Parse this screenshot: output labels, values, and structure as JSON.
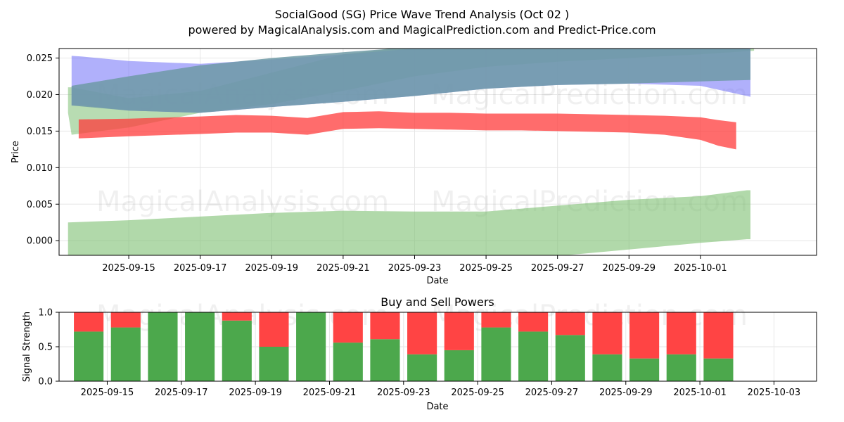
{
  "title_line1": "SocialGood (SG) Price Wave Trend Analysis (Oct 02 )",
  "title_line2": "powered by MagicalAnalysis.com and MagicalPrediction.com and Predict-Price.com",
  "watermarks": [
    "MagicalAnalysis.com",
    "MagicalPrediction.com"
  ],
  "colors": {
    "blue_band": "#6f6ff8",
    "green_band": "#7dbf72",
    "red_band": "#ff3b3b",
    "teal_overlap": "#6f9aa6",
    "buy": "#4ca84c",
    "sell": "#ff4444",
    "grid": "#e6e6e6"
  },
  "chart_data": [
    {
      "type": "area",
      "title": "",
      "xlabel": "Date",
      "ylabel": "Price",
      "xlim": [
        -1.95,
        19.25
      ],
      "ylim": [
        -0.002,
        0.0263
      ],
      "x_origin_date": "2025-09-15",
      "xticks": [
        {
          "x": 0,
          "label": "2025-09-15"
        },
        {
          "x": 2,
          "label": "2025-09-17"
        },
        {
          "x": 4,
          "label": "2025-09-19"
        },
        {
          "x": 6,
          "label": "2025-09-21"
        },
        {
          "x": 8,
          "label": "2025-09-23"
        },
        {
          "x": 10,
          "label": "2025-09-25"
        },
        {
          "x": 12,
          "label": "2025-09-27"
        },
        {
          "x": 14,
          "label": "2025-09-29"
        },
        {
          "x": 16,
          "label": "2025-10-01"
        }
      ],
      "yticks": [
        {
          "v": 0.0,
          "label": "0.000"
        },
        {
          "v": 0.005,
          "label": "0.005"
        },
        {
          "v": 0.01,
          "label": "0.010"
        },
        {
          "v": 0.015,
          "label": "0.015"
        },
        {
          "v": 0.02,
          "label": "0.020"
        },
        {
          "v": 0.025,
          "label": "0.025"
        }
      ],
      "grid": true,
      "series": [
        {
          "name": "upper-green-band",
          "color_key": "green_band",
          "x": [
            -1.7,
            -1.6,
            0,
            2,
            4,
            6,
            8,
            10,
            12,
            14,
            16,
            17.5
          ],
          "upper": [
            0.021,
            0.021,
            0.0195,
            0.0205,
            0.023,
            0.0255,
            0.0267,
            0.0268,
            0.0268,
            0.0268,
            0.0268,
            0.0268
          ],
          "lower": [
            0.0175,
            0.0145,
            0.0155,
            0.0175,
            0.0187,
            0.0205,
            0.0225,
            0.0238,
            0.0245,
            0.025,
            0.0255,
            0.026
          ]
        },
        {
          "name": "blue-band",
          "color_key": "blue_band",
          "x": [
            -1.6,
            -1.3,
            0,
            2,
            4,
            6,
            8,
            10,
            12,
            14,
            16,
            17.4
          ],
          "upper": [
            0.0253,
            0.0252,
            0.0246,
            0.0242,
            0.0248,
            0.0255,
            0.0263,
            0.0268,
            0.0268,
            0.0268,
            0.0268,
            0.0264
          ],
          "lower": [
            0.0185,
            0.0185,
            0.0178,
            0.0175,
            0.0183,
            0.019,
            0.0198,
            0.0208,
            0.0213,
            0.0215,
            0.0212,
            0.0197
          ]
        },
        {
          "name": "teal-overlap-band",
          "color_key": "teal_overlap",
          "x": [
            -1.6,
            0,
            2,
            4,
            6,
            8,
            10,
            12,
            14,
            16,
            17.4
          ],
          "upper": [
            0.0212,
            0.0225,
            0.024,
            0.025,
            0.0258,
            0.0265,
            0.0268,
            0.0268,
            0.0268,
            0.0268,
            0.0262
          ],
          "lower": [
            0.0185,
            0.0178,
            0.0175,
            0.0183,
            0.019,
            0.0198,
            0.0208,
            0.0213,
            0.0215,
            0.0218,
            0.022
          ]
        },
        {
          "name": "lower-green-band",
          "color_key": "green_band",
          "x": [
            -1.7,
            0,
            2,
            4,
            6,
            8,
            10,
            12,
            14,
            16,
            17.3,
            17.4
          ],
          "upper": [
            0.0025,
            0.0028,
            0.0033,
            0.0038,
            0.0041,
            0.004,
            0.004,
            0.0048,
            0.0056,
            0.0061,
            0.0069,
            0.0069
          ],
          "lower": [
            -0.002,
            -0.0025,
            -0.0026,
            -0.0027,
            -0.0027,
            -0.0027,
            -0.0026,
            -0.0021,
            -0.0012,
            -0.0003,
            0.0002,
            0.0002
          ]
        },
        {
          "name": "red-band",
          "color_key": "red_band",
          "x": [
            -1.4,
            0,
            2,
            3,
            4,
            5,
            6,
            7,
            8,
            9,
            10,
            11,
            12,
            13,
            14,
            15,
            16,
            16.5,
            17.0
          ],
          "upper": [
            0.0166,
            0.0167,
            0.017,
            0.0172,
            0.0171,
            0.0168,
            0.0176,
            0.0177,
            0.0175,
            0.0175,
            0.0174,
            0.0174,
            0.0174,
            0.0173,
            0.0172,
            0.0171,
            0.0169,
            0.0165,
            0.0162
          ],
          "lower": [
            0.014,
            0.0143,
            0.0146,
            0.0148,
            0.0148,
            0.0145,
            0.0153,
            0.0154,
            0.0153,
            0.0152,
            0.0151,
            0.0151,
            0.015,
            0.0149,
            0.0148,
            0.0145,
            0.0138,
            0.013,
            0.0125
          ]
        }
      ]
    },
    {
      "type": "bar",
      "stacked": true,
      "title": "Buy and Sell Powers",
      "xlabel": "Date",
      "ylabel": "Signal Strength",
      "xlim": [
        -1.3,
        19.15
      ],
      "ylim": [
        0,
        1
      ],
      "x_origin_date": "2025-09-15",
      "xticks": [
        {
          "x": 0,
          "label": "2025-09-15"
        },
        {
          "x": 2,
          "label": "2025-09-17"
        },
        {
          "x": 4,
          "label": "2025-09-19"
        },
        {
          "x": 6,
          "label": "2025-09-21"
        },
        {
          "x": 8,
          "label": "2025-09-23"
        },
        {
          "x": 10,
          "label": "2025-09-25"
        },
        {
          "x": 12,
          "label": "2025-09-27"
        },
        {
          "x": 14,
          "label": "2025-09-29"
        },
        {
          "x": 16,
          "label": "2025-10-01"
        },
        {
          "x": 18,
          "label": "2025-10-03"
        }
      ],
      "yticks": [
        {
          "v": 0.0,
          "label": "0.0"
        },
        {
          "v": 0.5,
          "label": "0.5"
        },
        {
          "v": 1.0,
          "label": "1.0"
        }
      ],
      "grid": true,
      "categories": [
        "2025-09-14",
        "2025-09-15",
        "2025-09-16",
        "2025-09-17",
        "2025-09-18",
        "2025-09-19",
        "2025-09-20",
        "2025-09-21",
        "2025-09-22",
        "2025-09-23",
        "2025-09-24",
        "2025-09-25",
        "2025-09-26",
        "2025-09-27",
        "2025-09-28",
        "2025-09-29",
        "2025-09-30",
        "2025-10-01"
      ],
      "x": [
        -0.5,
        0.5,
        1.5,
        2.5,
        3.5,
        4.5,
        5.5,
        6.5,
        7.5,
        8.5,
        9.5,
        10.5,
        11.5,
        12.5,
        13.5,
        14.5,
        15.5,
        16.5
      ],
      "series": [
        {
          "name": "Buy",
          "color_key": "buy",
          "values": [
            0.72,
            0.78,
            1.0,
            1.0,
            0.88,
            0.5,
            1.0,
            0.56,
            0.61,
            0.39,
            0.45,
            0.78,
            0.72,
            0.67,
            0.39,
            0.33,
            0.39,
            0.33
          ]
        },
        {
          "name": "Sell",
          "color_key": "sell",
          "values": [
            0.28,
            0.22,
            0.0,
            0.0,
            0.12,
            0.5,
            0.0,
            0.44,
            0.39,
            0.61,
            0.55,
            0.22,
            0.28,
            0.33,
            0.61,
            0.67,
            0.61,
            0.67
          ]
        }
      ]
    }
  ]
}
